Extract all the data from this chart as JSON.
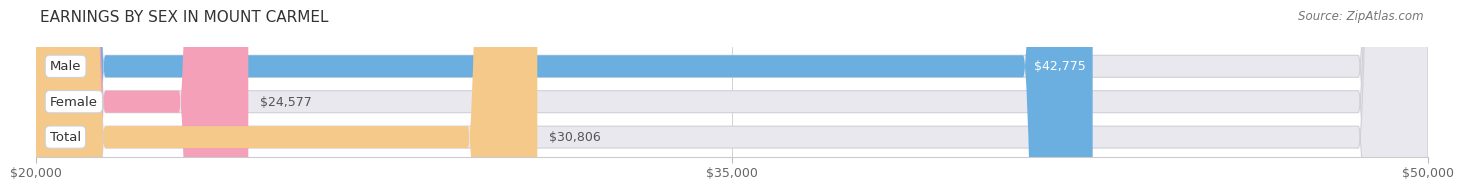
{
  "title": "EARNINGS BY SEX IN MOUNT CARMEL",
  "source": "Source: ZipAtlas.com",
  "categories": [
    "Male",
    "Female",
    "Total"
  ],
  "values": [
    42775,
    24577,
    30806
  ],
  "bar_colors": [
    "#6aafe0",
    "#f4a0b8",
    "#f5c98a"
  ],
  "value_labels": [
    "$42,775",
    "$24,577",
    "$30,806"
  ],
  "xmin": 20000,
  "xmax": 50000,
  "xticks": [
    20000,
    35000,
    50000
  ],
  "xtick_labels": [
    "$20,000",
    "$35,000",
    "$50,000"
  ],
  "bg_color": "#ffffff",
  "bar_bg_color": "#e8e8ee",
  "title_fontsize": 11,
  "source_fontsize": 8.5,
  "label_fontsize": 9.5,
  "value_fontsize": 9,
  "tick_fontsize": 9
}
